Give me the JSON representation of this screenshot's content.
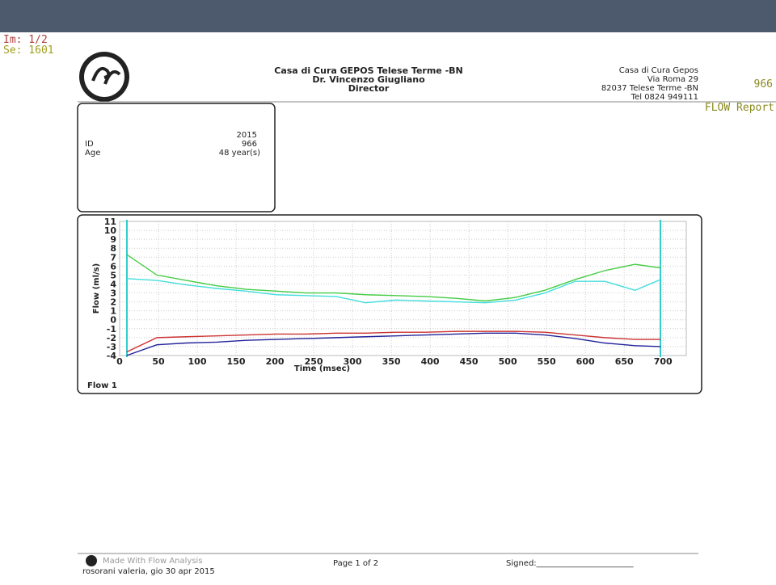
{
  "viewer": {
    "image": "Im: 1/2",
    "series": "Se: 1601",
    "patient_id": "966",
    "report": "FLOW Report"
  },
  "header": {
    "institution": "Casa di Cura GEPOS Telese Terme -BN",
    "doctor": "Dr. Vincenzo Giugliano",
    "role": "Director",
    "address": [
      "Casa di Cura Gepos",
      "Via Roma 29",
      "82037 Telese Terme -BN",
      "Tel 0824 949111"
    ]
  },
  "patient": {
    "date": "2015",
    "id_label": "ID",
    "id": "966",
    "age_label": "Age",
    "age": "48 year(s)"
  },
  "panel_label": "Flow 1",
  "footer": {
    "made_with": "Made With Flow Analysis",
    "user": "rosorani valeria, gio 30 apr 2015",
    "page": "Page 1 of 2",
    "signed": "Signed:________________________"
  },
  "chart_data": {
    "type": "line",
    "x_label": "Time (msec)",
    "y_label": "Flow (ml/s)",
    "x": [
      9,
      48,
      86,
      125,
      163,
      202,
      240,
      279,
      317,
      356,
      394,
      433,
      471,
      510,
      548,
      587,
      625,
      664,
      697
    ],
    "series": [
      {
        "color": "#44cc44",
        "values": [
          7.3,
          5.0,
          4.4,
          3.8,
          3.4,
          3.2,
          3.0,
          3.0,
          2.8,
          2.7,
          2.6,
          2.4,
          2.1,
          2.5,
          3.3,
          4.5,
          5.5,
          6.2,
          5.8
        ]
      },
      {
        "color": "#44dddd",
        "values": [
          4.6,
          4.4,
          3.9,
          3.5,
          3.2,
          2.8,
          2.7,
          2.6,
          1.9,
          2.2,
          2.1,
          2.0,
          1.9,
          2.2,
          3.0,
          4.3,
          4.3,
          3.3,
          4.5
        ]
      },
      {
        "color": "#cc3333",
        "values": [
          -3.6,
          -2.0,
          -1.9,
          -1.8,
          -1.7,
          -1.6,
          -1.6,
          -1.5,
          -1.5,
          -1.4,
          -1.4,
          -1.3,
          -1.3,
          -1.3,
          -1.4,
          -1.7,
          -2.0,
          -2.2,
          -2.2
        ]
      },
      {
        "color": "#22229a",
        "values": [
          -4.0,
          -2.8,
          -2.6,
          -2.5,
          -2.3,
          -2.2,
          -2.1,
          -2.0,
          -1.9,
          -1.8,
          -1.7,
          -1.6,
          -1.5,
          -1.5,
          -1.7,
          -2.1,
          -2.6,
          -2.9,
          -3.0
        ]
      }
    ],
    "xlim": [
      0,
      730
    ],
    "xticks": [
      0,
      50,
      100,
      150,
      200,
      250,
      300,
      350,
      400,
      450,
      500,
      550,
      600,
      650,
      700
    ],
    "ylim": [
      -4,
      11
    ],
    "yticks": [
      -4,
      -3,
      -2,
      -1,
      0,
      1,
      2,
      3,
      4,
      5,
      6,
      7,
      8,
      9,
      10,
      11
    ],
    "grid": true
  }
}
